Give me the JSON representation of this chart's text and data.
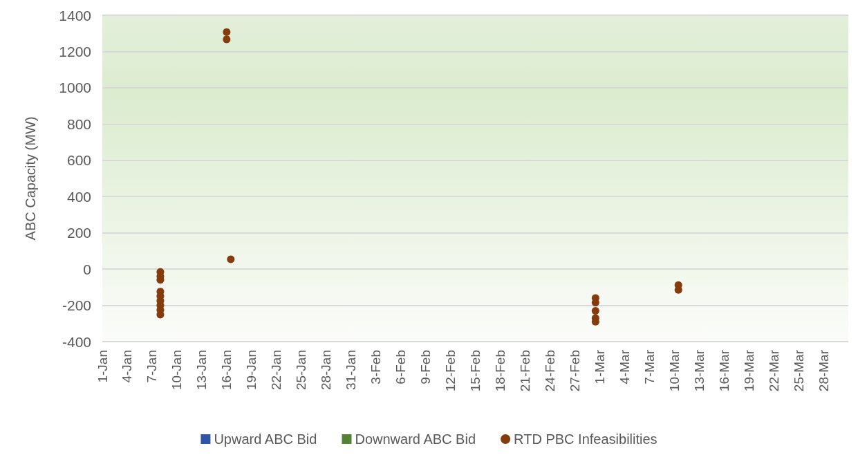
{
  "chart_data": {
    "type": "scatter",
    "ylabel": "ABC Capacity (MW)",
    "series": [
      {
        "name": "Upward ABC Bid",
        "type": "bar",
        "color": "#2f55a4"
      },
      {
        "name": "Downward ABC Bid",
        "type": "bar",
        "color": "#548235"
      },
      {
        "name": "RTD PBC Infeasibilities",
        "color": "#843c0c",
        "x": [
          "--01-08",
          "--01-08",
          "--01-08",
          "--01-08",
          "--01-08",
          "--01-08",
          "--01-08",
          "--01-08",
          "--01-08",
          "--01-16",
          "--01-16",
          "--01-16T12:00",
          "--02-29T12:00",
          "--02-29T12:00",
          "--02-29T12:00",
          "--02-29T12:00",
          "--02-29T12:00",
          "--03-10T12:00",
          "--03-10T12:00"
        ],
        "values": [
          -16,
          -41,
          -60,
          -124,
          -149,
          -175,
          -200,
          -226,
          -251,
          1307,
          1267,
          54,
          -160,
          -185,
          -230,
          -270,
          -290,
          -88,
          -115
        ]
      }
    ],
    "xlim": [
      "--01-01",
      "--03-31"
    ],
    "xticks": [
      {
        "value": "--01-01",
        "label": "1-Jan"
      },
      {
        "value": "--01-04",
        "label": "4-Jan"
      },
      {
        "value": "--01-07",
        "label": "7-Jan"
      },
      {
        "value": "--01-10",
        "label": "10-Jan"
      },
      {
        "value": "--01-13",
        "label": "13-Jan"
      },
      {
        "value": "--01-16",
        "label": "16-Jan"
      },
      {
        "value": "--01-19",
        "label": "19-Jan"
      },
      {
        "value": "--01-22",
        "label": "22-Jan"
      },
      {
        "value": "--01-25",
        "label": "25-Jan"
      },
      {
        "value": "--01-28",
        "label": "28-Jan"
      },
      {
        "value": "--01-31",
        "label": "31-Jan"
      },
      {
        "value": "--02-03",
        "label": "3-Feb"
      },
      {
        "value": "--02-06",
        "label": "6-Feb"
      },
      {
        "value": "--02-09",
        "label": "9-Feb"
      },
      {
        "value": "--02-12",
        "label": "12-Feb"
      },
      {
        "value": "--02-15",
        "label": "15-Feb"
      },
      {
        "value": "--02-18",
        "label": "18-Feb"
      },
      {
        "value": "--02-21",
        "label": "21-Feb"
      },
      {
        "value": "--02-24",
        "label": "24-Feb"
      },
      {
        "value": "--02-27",
        "label": "27-Feb"
      },
      {
        "value": "--03-01",
        "label": "1-Mar"
      },
      {
        "value": "--03-04",
        "label": "4-Mar"
      },
      {
        "value": "--03-07",
        "label": "7-Mar"
      },
      {
        "value": "--03-10",
        "label": "10-Mar"
      },
      {
        "value": "--03-13",
        "label": "13-Mar"
      },
      {
        "value": "--03-16",
        "label": "16-Mar"
      },
      {
        "value": "--03-19",
        "label": "19-Mar"
      },
      {
        "value": "--03-22",
        "label": "22-Mar"
      },
      {
        "value": "--03-25",
        "label": "25-Mar"
      },
      {
        "value": "--03-28",
        "label": "28-Mar"
      }
    ],
    "ylim": [
      -400,
      1400
    ],
    "yticks": [
      -400,
      -200,
      0,
      200,
      400,
      600,
      800,
      1000,
      1200,
      1400
    ],
    "grid": "y",
    "legend": "bottom",
    "marker": "circle"
  }
}
